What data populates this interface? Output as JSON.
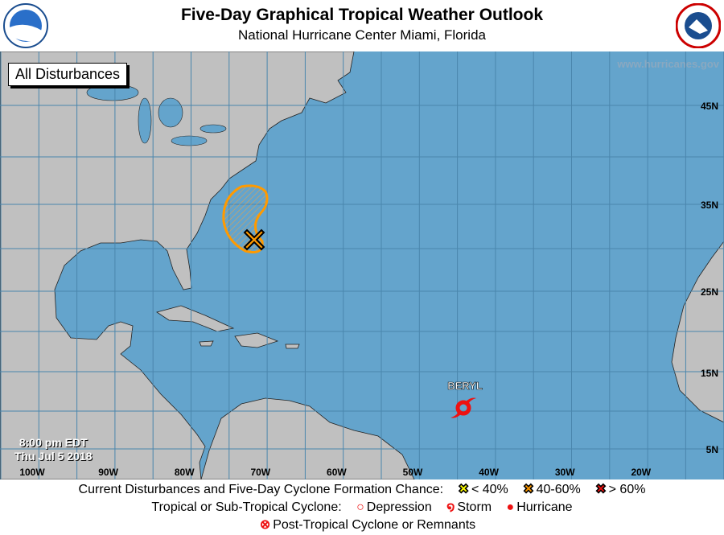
{
  "header": {
    "title": "Five-Day Graphical Tropical Weather Outlook",
    "subtitle": "National Hurricane Center  Miami, Florida",
    "left_logo": "NOAA",
    "right_logo": "National Weather Service"
  },
  "map": {
    "filter_label": "All Disturbances",
    "website": "www.hurricanes.gov",
    "time": "8:00 pm EDT",
    "date": "Thu Jul 5 2018",
    "lon_labels": [
      "100W",
      "90W",
      "80W",
      "70W",
      "60W",
      "50W",
      "40W",
      "30W",
      "20W"
    ],
    "lat_labels": [
      "45N",
      "35N",
      "25N",
      "15N",
      "5N"
    ],
    "ocean_color": "#64a4cc",
    "land_color": "#c0c0c0",
    "disturbance": {
      "chance_category": "40-60%",
      "color": "#ff9a00"
    },
    "storm": {
      "name": "BERYL",
      "type": "Storm",
      "color": "#ee1111"
    }
  },
  "legend": {
    "row1_label": "Current Disturbances and Five-Day Cyclone Formation Chance:",
    "chance_low": "< 40%",
    "chance_mid": "40-60%",
    "chance_high": "> 60%",
    "row2_label": "Tropical or Sub-Tropical Cyclone:",
    "depression": "Depression",
    "storm": "Storm",
    "hurricane": "Hurricane",
    "post_tropical": "Post-Tropical Cyclone or Remnants",
    "colors": {
      "low": "#ffff00",
      "mid": "#ff9a00",
      "high": "#ee1111",
      "cyclone": "#ee1111"
    }
  }
}
